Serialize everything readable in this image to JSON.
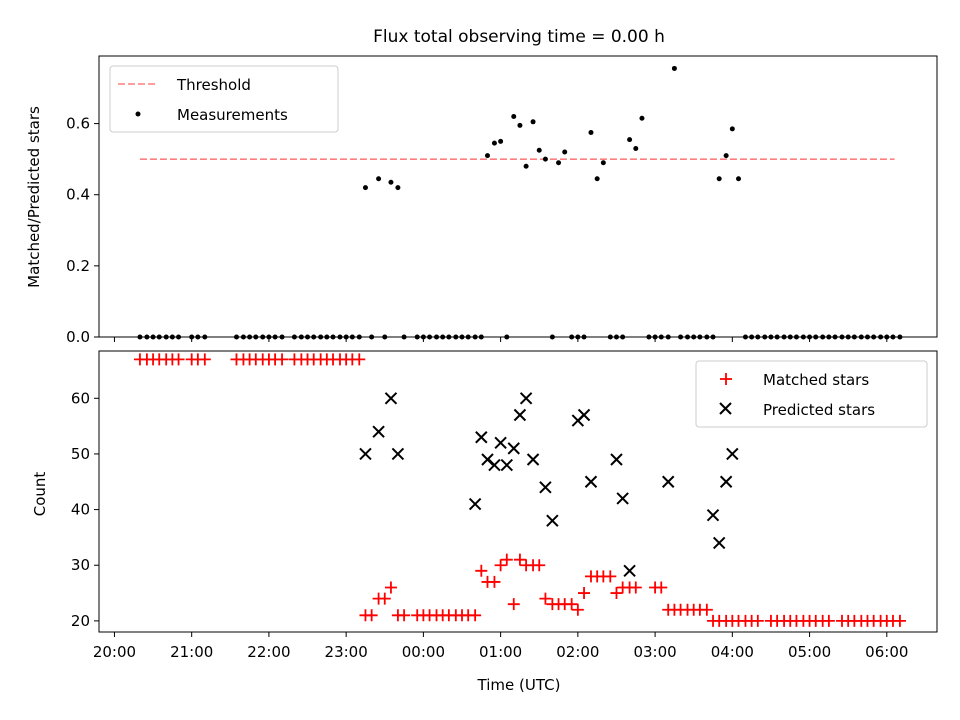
{
  "chart_data": [
    {
      "type": "scatter",
      "title": "Flux total observing time = 0.00 h",
      "xlabel": "",
      "ylabel": "Matched/Predicted stars",
      "xlim": [
        19.8,
        30.65
      ],
      "ylim": [
        0,
        0.79
      ],
      "yticks": [
        0.0,
        0.2,
        0.4,
        0.6
      ],
      "ytick_labels": [
        "0.0",
        "0.2",
        "0.4",
        "0.6"
      ],
      "threshold": {
        "name": "Threshold",
        "value": 0.5,
        "x_start": 20.33,
        "x_end": 30.1,
        "color": "#ff7f7f"
      },
      "legend": {
        "location": "top-left",
        "entries": [
          "Threshold",
          "Measurements"
        ]
      },
      "series": [
        {
          "name": "Measurements",
          "color": "#000000",
          "x": [
            20.33,
            20.42,
            20.5,
            20.58,
            20.67,
            20.75,
            20.83,
            21.0,
            21.08,
            21.17,
            21.58,
            21.67,
            21.75,
            21.83,
            21.92,
            22.0,
            22.08,
            22.17,
            22.33,
            22.42,
            22.5,
            22.58,
            22.67,
            22.75,
            22.83,
            22.92,
            23.0,
            23.08,
            23.17,
            23.25,
            23.33,
            23.42,
            23.5,
            23.58,
            23.67,
            23.75,
            23.92,
            24.0,
            24.08,
            24.17,
            24.25,
            24.33,
            24.42,
            24.5,
            24.58,
            24.67,
            24.75,
            24.83,
            24.92,
            25.0,
            25.08,
            25.17,
            25.25,
            25.33,
            25.42,
            25.5,
            25.58,
            25.67,
            25.75,
            25.83,
            25.92,
            26.0,
            26.08,
            26.17,
            26.25,
            26.33,
            26.42,
            26.5,
            26.58,
            26.67,
            26.75,
            26.83,
            26.92,
            27.0,
            27.08,
            27.17,
            27.25,
            27.33,
            27.42,
            27.5,
            27.58,
            27.67,
            27.75,
            27.83,
            27.92,
            28.0,
            28.08,
            28.17,
            28.25,
            28.33,
            28.42,
            28.5,
            28.58,
            28.67,
            28.75,
            28.83,
            28.92,
            29.0,
            29.08,
            29.17,
            29.25,
            29.33,
            29.42,
            29.5,
            29.58,
            29.67,
            29.75,
            29.83,
            29.92,
            30.0,
            30.08,
            30.17
          ],
          "y": [
            0,
            0,
            0,
            0,
            0,
            0,
            0,
            0,
            0,
            0,
            0,
            0,
            0,
            0,
            0,
            0,
            0,
            0,
            0,
            0,
            0,
            0,
            0,
            0,
            0,
            0,
            0,
            0,
            0,
            0.42,
            0,
            0.445,
            0,
            0.435,
            0.42,
            0,
            0,
            0,
            0,
            0,
            0,
            0,
            0,
            0,
            0,
            0,
            0,
            0.51,
            0.545,
            0.55,
            0,
            0.62,
            0.595,
            0.48,
            0.605,
            0.525,
            0.5,
            0,
            0.49,
            0.52,
            0,
            0,
            0,
            0.575,
            0.445,
            0.49,
            0,
            0,
            0,
            0.555,
            0.53,
            0.615,
            0,
            0,
            0,
            0,
            0.755,
            0,
            0,
            0,
            0,
            0,
            0,
            0.445,
            0.51,
            0.585,
            0.445,
            0,
            0,
            0,
            0,
            0,
            0,
            0,
            0,
            0,
            0,
            0,
            0,
            0,
            0,
            0,
            0,
            0,
            0,
            0,
            0,
            0,
            0,
            0,
            0,
            0
          ]
        }
      ]
    },
    {
      "type": "scatter",
      "title": "",
      "xlabel": "Time (UTC)",
      "ylabel": "Count",
      "xlim": [
        19.8,
        30.65
      ],
      "ylim": [
        18,
        68.5
      ],
      "yticks": [
        20,
        30,
        40,
        50,
        60
      ],
      "ytick_labels": [
        "20",
        "30",
        "40",
        "50",
        "60"
      ],
      "xticks": [
        20,
        21,
        22,
        23,
        24,
        25,
        26,
        27,
        28,
        29,
        30
      ],
      "xtick_labels": [
        "20:00",
        "21:00",
        "22:00",
        "23:00",
        "00:00",
        "01:00",
        "02:00",
        "03:00",
        "04:00",
        "05:00",
        "06:00"
      ],
      "legend": {
        "location": "top-right",
        "entries": [
          "Matched stars",
          "Predicted stars"
        ]
      },
      "series": [
        {
          "name": "Matched stars",
          "marker": "plus",
          "color": "#ff0000",
          "x": [
            20.33,
            20.42,
            20.5,
            20.58,
            20.67,
            20.75,
            20.83,
            21.0,
            21.08,
            21.17,
            21.58,
            21.67,
            21.75,
            21.83,
            21.92,
            22.0,
            22.08,
            22.17,
            22.33,
            22.42,
            22.5,
            22.58,
            22.67,
            22.75,
            22.83,
            22.92,
            23.0,
            23.08,
            23.17,
            23.25,
            23.33,
            23.42,
            23.5,
            23.58,
            23.67,
            23.75,
            23.92,
            24.0,
            24.08,
            24.17,
            24.25,
            24.33,
            24.42,
            24.5,
            24.58,
            24.67,
            24.75,
            24.83,
            24.92,
            25.0,
            25.08,
            25.17,
            25.25,
            25.33,
            25.42,
            25.5,
            25.58,
            25.67,
            25.75,
            25.83,
            25.92,
            26.0,
            26.08,
            26.17,
            26.25,
            26.33,
            26.42,
            26.5,
            26.58,
            26.67,
            26.75,
            27.0,
            27.08,
            27.17,
            27.25,
            27.33,
            27.42,
            27.5,
            27.58,
            27.67,
            27.75,
            27.83,
            27.92,
            28.0,
            28.08,
            28.17,
            28.25,
            28.33,
            28.5,
            28.58,
            28.67,
            28.75,
            28.83,
            28.92,
            29.0,
            29.08,
            29.17,
            29.25,
            29.42,
            29.5,
            29.58,
            29.67,
            29.75,
            29.83,
            29.92,
            30.0,
            30.08,
            30.17
          ],
          "y": [
            67,
            67,
            67,
            67,
            67,
            67,
            67,
            67,
            67,
            67,
            67,
            67,
            67,
            67,
            67,
            67,
            67,
            67,
            67,
            67,
            67,
            67,
            67,
            67,
            67,
            67,
            67,
            67,
            67,
            21,
            21,
            24,
            24,
            26,
            21,
            21,
            21,
            21,
            21,
            21,
            21,
            21,
            21,
            21,
            21,
            21,
            29,
            27,
            27,
            30,
            31,
            23,
            31,
            30,
            30,
            30,
            24,
            23,
            23,
            23,
            23,
            22,
            25,
            28,
            28,
            28,
            28,
            25,
            26,
            26,
            26,
            26,
            26,
            22,
            22,
            22,
            22,
            22,
            22,
            22,
            20,
            20,
            20,
            20,
            20,
            20,
            20,
            20,
            20,
            20,
            20,
            20,
            20,
            20,
            20,
            20,
            20,
            20,
            20,
            20,
            20,
            20,
            20,
            20,
            20,
            20,
            20,
            20
          ]
        },
        {
          "name": "Predicted stars",
          "marker": "x",
          "color": "#000000",
          "x": [
            23.25,
            23.42,
            23.58,
            23.67,
            24.67,
            24.75,
            24.83,
            24.92,
            25.0,
            25.08,
            25.17,
            25.25,
            25.33,
            25.42,
            25.58,
            25.67,
            26.0,
            26.08,
            26.17,
            26.5,
            26.58,
            26.67,
            27.17,
            27.75,
            27.83,
            27.92,
            28.0
          ],
          "y": [
            50,
            54,
            60,
            50,
            41,
            53,
            49,
            48,
            52,
            48,
            51,
            57,
            60,
            49,
            44,
            38,
            56,
            57,
            45,
            49,
            42,
            29,
            45,
            39,
            34,
            45,
            50
          ]
        }
      ]
    }
  ]
}
